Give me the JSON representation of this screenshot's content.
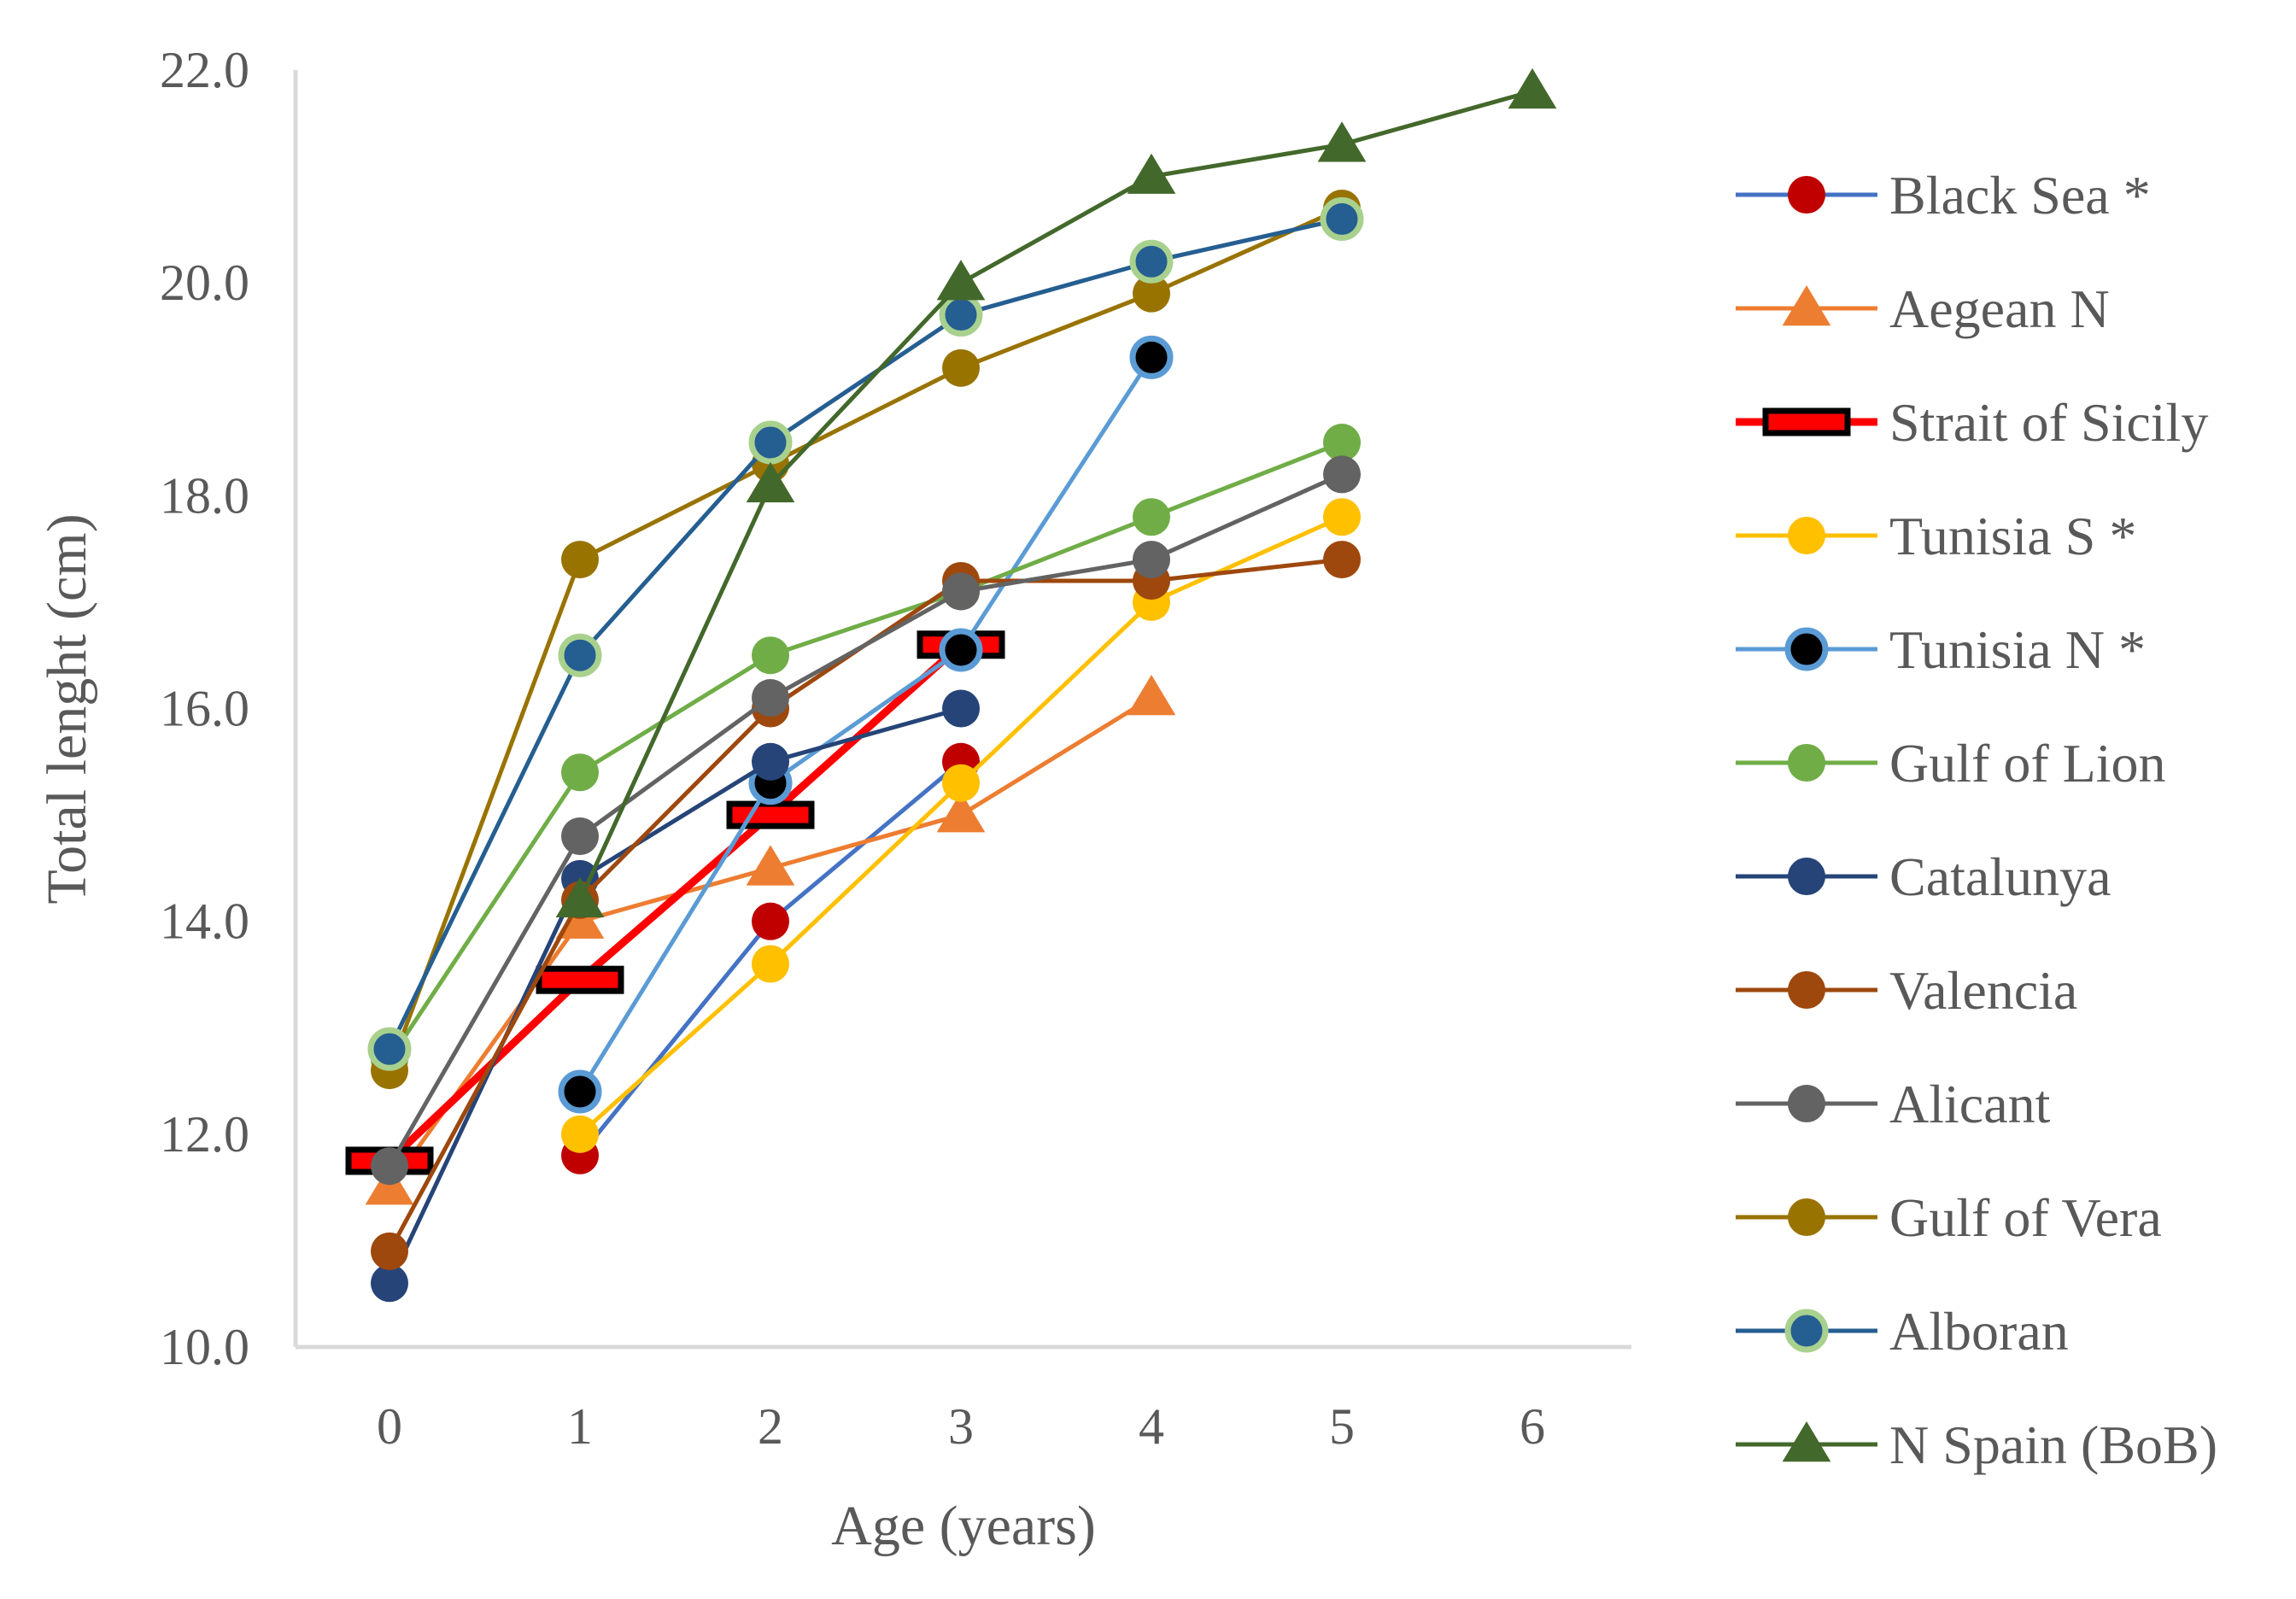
{
  "chart_data": {
    "type": "line",
    "title": "",
    "xlabel": "Age (years)",
    "ylabel": "Total lenght (cm)",
    "x": [
      0,
      1,
      2,
      3,
      4,
      5,
      6
    ],
    "xlim": [
      0,
      6
    ],
    "ylim": [
      10.0,
      22.0
    ],
    "yticks": [
      "10.0",
      "12.0",
      "14.0",
      "16.0",
      "18.0",
      "20.0",
      "22.0"
    ],
    "xticks": [
      "0",
      "1",
      "2",
      "3",
      "4",
      "5",
      "6"
    ],
    "grid": false,
    "legend_position": "right",
    "series": [
      {
        "name": "Black Sea *",
        "values": [
          null,
          11.8,
          14.0,
          15.5,
          null,
          null,
          null
        ],
        "color": "#4472C4",
        "marker": "circle",
        "marker_color": "#C00000"
      },
      {
        "name": "Aegean N",
        "values": [
          11.5,
          14.0,
          14.5,
          15.0,
          16.1,
          null,
          null
        ],
        "color": "#ED7D31",
        "marker": "triangle",
        "marker_color": "#ED7D31"
      },
      {
        "name": "Strait of Sicily",
        "values": [
          11.75,
          13.45,
          15.0,
          16.6,
          null,
          null,
          null
        ],
        "color": "#FF0000",
        "marker": "dash",
        "marker_color": "#000000"
      },
      {
        "name": "Tunisia S *",
        "values": [
          null,
          12.0,
          13.6,
          15.3,
          17.0,
          17.8,
          null
        ],
        "color": "#FFC000",
        "marker": "circle",
        "marker_color": "#FFC000"
      },
      {
        "name": "Tunisia N *",
        "values": [
          null,
          12.4,
          15.3,
          16.55,
          19.3,
          null,
          null
        ],
        "color": "#5B9BD5",
        "marker": "ring",
        "marker_color": "#000000"
      },
      {
        "name": "Gulf of Lion",
        "values": [
          12.7,
          15.4,
          16.5,
          17.1,
          17.8,
          18.5,
          null
        ],
        "color": "#70AD47",
        "marker": "circle",
        "marker_color": "#70AD47"
      },
      {
        "name": "Catalunya",
        "values": [
          10.6,
          14.4,
          15.5,
          16.0,
          null,
          null,
          null
        ],
        "color": "#264478",
        "marker": "circle",
        "marker_color": "#264478"
      },
      {
        "name": "Valencia",
        "values": [
          10.9,
          14.2,
          16.0,
          17.2,
          17.2,
          17.4,
          null
        ],
        "color": "#9E480E",
        "marker": "circle",
        "marker_color": "#9E480E"
      },
      {
        "name": "Alicant",
        "values": [
          11.7,
          14.8,
          16.1,
          17.1,
          17.4,
          18.2,
          null
        ],
        "color": "#636363",
        "marker": "circle",
        "marker_color": "#636363"
      },
      {
        "name": "Gulf of Vera",
        "values": [
          12.6,
          17.4,
          18.3,
          19.2,
          19.9,
          20.7,
          null
        ],
        "color": "#997300",
        "marker": "circle",
        "marker_color": "#997300"
      },
      {
        "name": "Alboran",
        "values": [
          12.8,
          16.5,
          18.5,
          19.7,
          20.2,
          20.6,
          null
        ],
        "color": "#255E91",
        "marker": "ring",
        "marker_color": "#A9D18E"
      },
      {
        "name": "N Spain (BoB)",
        "values": [
          null,
          14.2,
          18.1,
          20.0,
          21.0,
          21.3,
          21.8
        ],
        "color": "#43682B",
        "marker": "triangle",
        "marker_color": "#43682B"
      }
    ]
  }
}
